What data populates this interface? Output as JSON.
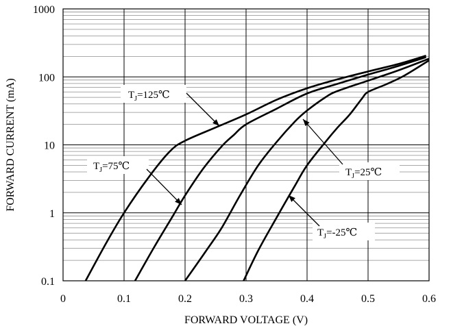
{
  "chart_data": {
    "type": "line",
    "title": "",
    "xlabel": "FORWARD VOLTAGE (V)",
    "ylabel": "FORWARD CURRENT (mA)",
    "xlim": [
      0,
      0.6
    ],
    "ylim": [
      0.1,
      1000
    ],
    "yscale": "log",
    "grid": true,
    "x_ticks": [
      "0",
      "0.1",
      "0.2",
      "0.3",
      "0.4",
      "0.5",
      "0.6"
    ],
    "y_ticks": [
      "0.1",
      "1",
      "10",
      "100",
      "1000"
    ],
    "series": [
      {
        "name": "TJ=125℃",
        "x": [
          0.037,
          0.07,
          0.1,
          0.14,
          0.175,
          0.2,
          0.25,
          0.3,
          0.35,
          0.4,
          0.45,
          0.5,
          0.55,
          0.595
        ],
        "y": [
          0.1,
          0.35,
          1,
          3.3,
          8,
          11.5,
          18,
          28,
          46,
          68,
          92,
          120,
          155,
          205
        ]
      },
      {
        "name": "TJ=75℃",
        "x": [
          0.118,
          0.15,
          0.18,
          0.2,
          0.23,
          0.26,
          0.28,
          0.3,
          0.35,
          0.4,
          0.45,
          0.5,
          0.55,
          0.595
        ],
        "y": [
          0.1,
          0.32,
          0.9,
          1.8,
          4.5,
          9.5,
          14,
          20,
          34,
          57,
          79,
          108,
          145,
          195
        ]
      },
      {
        "name": "TJ=25℃",
        "x": [
          0.2,
          0.235,
          0.26,
          0.29,
          0.32,
          0.35,
          0.38,
          0.4,
          0.43,
          0.45,
          0.5,
          0.55,
          0.6
        ],
        "y": [
          0.1,
          0.28,
          0.6,
          1.8,
          5,
          11,
          22,
          32,
          50,
          62,
          88,
          125,
          185
        ]
      },
      {
        "name": "TJ=-25℃",
        "x": [
          0.296,
          0.32,
          0.35,
          0.38,
          0.4,
          0.43,
          0.45,
          0.47,
          0.49,
          0.5,
          0.53,
          0.56,
          0.6
        ],
        "y": [
          0.1,
          0.28,
          0.85,
          2.5,
          5,
          11,
          18,
          28,
          48,
          60,
          78,
          105,
          175
        ]
      }
    ],
    "annotations": [
      {
        "main": "T",
        "sub": "J",
        "suffix": "=125℃"
      },
      {
        "main": "T",
        "sub": "J",
        "suffix": "=75℃"
      },
      {
        "main": "T",
        "sub": "J",
        "suffix": "=25℃"
      },
      {
        "main": "T",
        "sub": "J",
        "suffix": "=-25℃"
      }
    ]
  }
}
